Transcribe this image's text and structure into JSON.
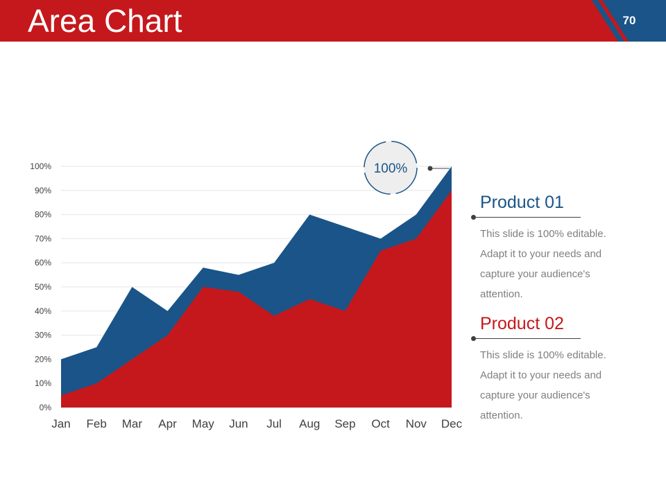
{
  "slide": {
    "title": "Area Chart",
    "page_number": "70"
  },
  "colors": {
    "header_red": "#c5181c",
    "header_blue": "#1a5488",
    "product_01": "#1a5488",
    "product_02": "#c5181c"
  },
  "chart_data": {
    "type": "area",
    "categories": [
      "Jan",
      "Feb",
      "Mar",
      "Apr",
      "May",
      "Jun",
      "Jul",
      "Aug",
      "Sep",
      "Oct",
      "Nov",
      "Dec"
    ],
    "series": [
      {
        "name": "Product 01",
        "color": "#1a5488",
        "values": [
          20,
          25,
          50,
          40,
          58,
          55,
          60,
          80,
          75,
          70,
          80,
          100
        ]
      },
      {
        "name": "Product 02",
        "color": "#c5181c",
        "values": [
          5,
          10,
          20,
          30,
          50,
          48,
          38,
          45,
          40,
          65,
          70,
          90
        ]
      }
    ],
    "ylim": [
      0,
      100
    ],
    "y_ticks": [
      "0%",
      "10%",
      "20%",
      "30%",
      "40%",
      "50%",
      "60%",
      "70%",
      "80%",
      "90%",
      "100%"
    ],
    "grid": true,
    "callout": {
      "label": "100%",
      "category": "Dec"
    }
  },
  "legend": {
    "products": [
      {
        "title": "Product 01",
        "description": "This slide is 100% editable. Adapt it to your needs and capture your audience's attention."
      },
      {
        "title": "Product 02",
        "description": "This slide is 100% editable. Adapt it to your needs and capture your audience's attention."
      }
    ]
  }
}
